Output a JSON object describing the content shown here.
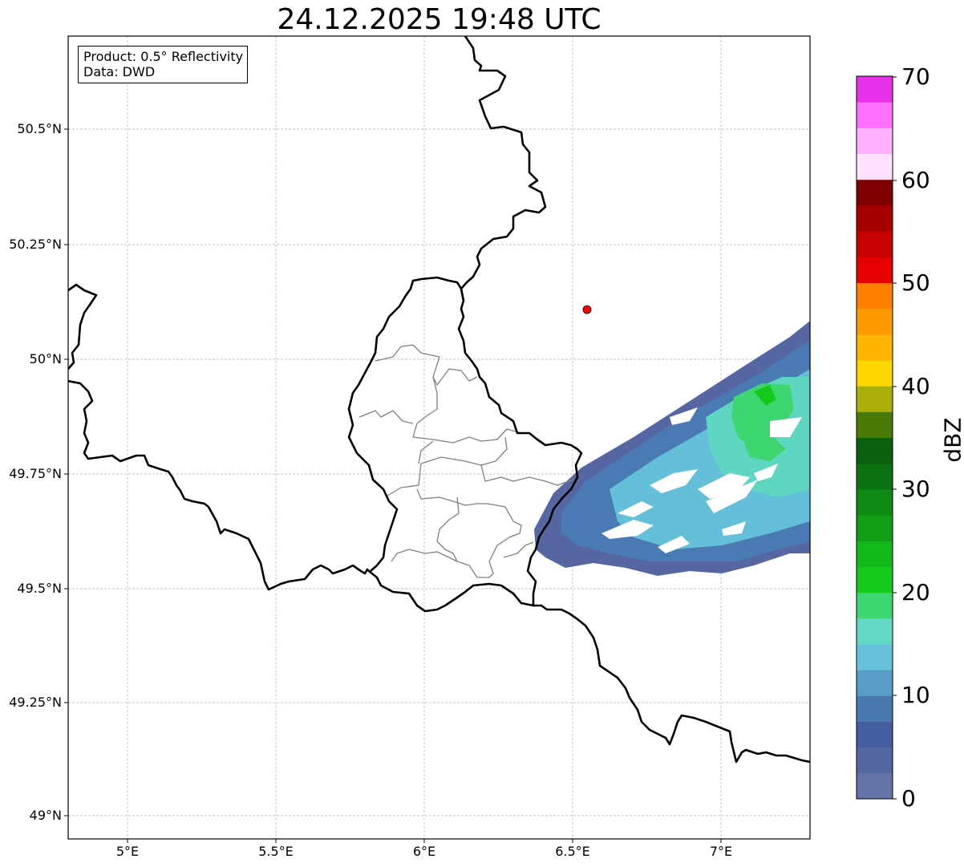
{
  "title": "24.12.2025 19:48 UTC",
  "info_box": {
    "product": "Product: 0.5° Reflectivity",
    "data": "Data: DWD"
  },
  "lat_labels": [
    "50.5°N",
    "50.25°N",
    "50°N",
    "49.75°N",
    "49.5°N",
    "49.25°N",
    "49°N"
  ],
  "lon_labels": [
    "5°E",
    "5.5°E",
    "6°E",
    "6.5°E",
    "7°E"
  ],
  "colorbar": {
    "label": "dBZ",
    "ticks": [
      "0",
      "10",
      "20",
      "30",
      "40",
      "50",
      "60",
      "70"
    ],
    "colors": [
      "#6673a8",
      "#5368a0",
      "#455e9f",
      "#4a79b0",
      "#5a9cc8",
      "#66c2dc",
      "#63d8c4",
      "#3dd670",
      "#13c91a",
      "#12b81a",
      "#119e17",
      "#0e8a14",
      "#0b7010",
      "#0a5e0c",
      "#4a7a08",
      "#aab008",
      "#fed600",
      "#feb400",
      "#fe9a00",
      "#fe7e00",
      "#e60000",
      "#c80000",
      "#a80000",
      "#800000",
      "#ffe0ff",
      "#ffb0ff",
      "#ff6fff",
      "#e830e8"
    ]
  },
  "radar_site": {
    "lon": 6.548,
    "lat": 50.11,
    "color": "#ff0000"
  },
  "colors": {
    "border": "#000000",
    "district": "#808080",
    "grid": "#b0b0b0"
  }
}
